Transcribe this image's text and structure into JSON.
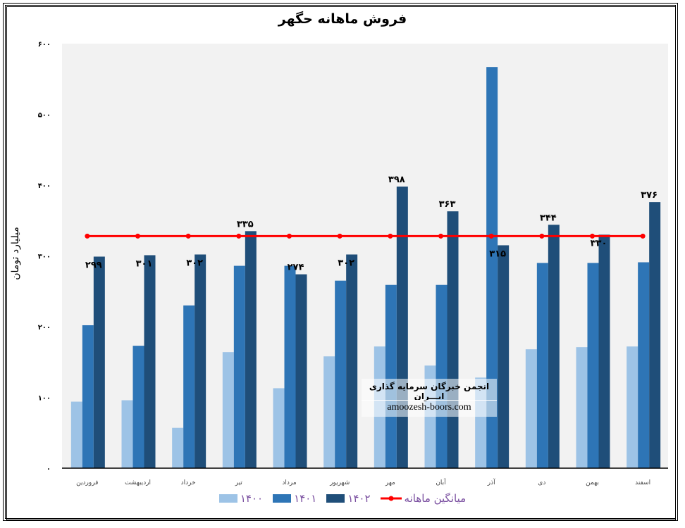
{
  "chart_data": {
    "type": "bar",
    "title": "فروش ماهانه حگهر",
    "ylabel": "میلیارد تومان",
    "xlabel": "",
    "ylim": [
      0,
      600
    ],
    "yticks": [
      0,
      100,
      200,
      300,
      400,
      500,
      600
    ],
    "ytick_labels": [
      "۰",
      "۱۰۰",
      "۲۰۰",
      "۳۰۰",
      "۴۰۰",
      "۵۰۰",
      "۶۰۰"
    ],
    "grid": false,
    "legend_position": "bottom",
    "categories": [
      "فروردین",
      "اردیبهشت",
      "خرداد",
      "تیر",
      "مرداد",
      "شهریور",
      "مهر",
      "آبان",
      "آذر",
      "دی",
      "بهمن",
      "اسفند"
    ],
    "series": [
      {
        "name": "۱۴۰۰",
        "color": "#9dc3e6",
        "values": [
          94,
          96,
          57,
          164,
          113,
          158,
          172,
          145,
          128,
          168,
          171,
          172
        ]
      },
      {
        "name": "۱۴۰۱",
        "color": "#2e75b6",
        "values": [
          202,
          173,
          230,
          286,
          286,
          265,
          259,
          259,
          567,
          290,
          290,
          291
        ]
      },
      {
        "name": "۱۴۰۲",
        "color": "#1f4e79",
        "values": [
          299,
          301,
          302,
          335,
          274,
          302,
          398,
          363,
          315,
          344,
          330,
          376
        ],
        "data_labels": [
          "۲۹۹",
          "۳۰۱",
          "۳۰۲",
          "۳۳۵",
          "۲۷۴",
          "۳۰۲",
          "۳۹۸",
          "۳۶۳",
          "۳۱۵",
          "۳۴۴",
          "۳۳۰",
          "۳۷۶"
        ]
      }
    ],
    "line_series": {
      "name": "میانگین ماهانه",
      "color": "#ff0000",
      "value": 328
    },
    "plot_background": "#f2f2f2"
  },
  "watermark": {
    "line1": "انجمن خبرگان سرمایه گذاری ایـــران",
    "line2": "amoozesh-boors.com"
  }
}
